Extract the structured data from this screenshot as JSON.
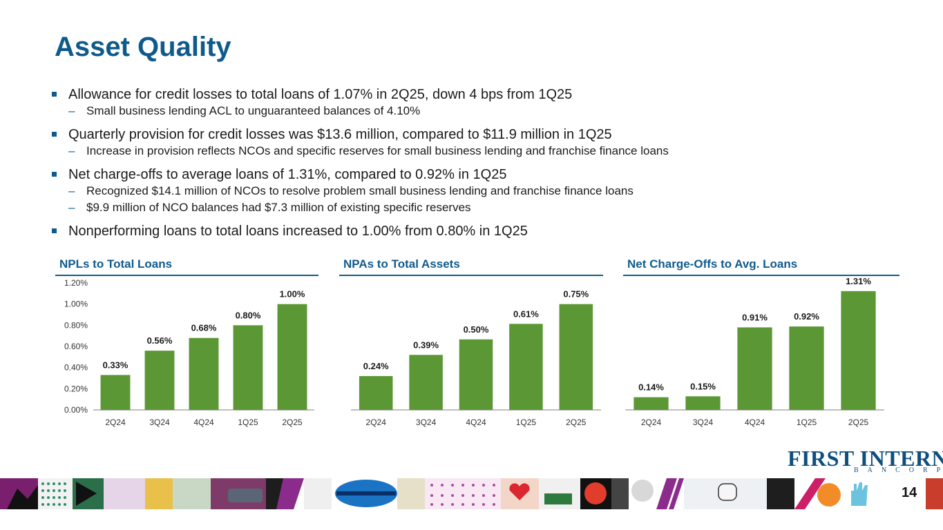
{
  "slide": {
    "title": "Asset Quality",
    "page_number": "14",
    "logo_main": "FIRST INTERNET",
    "logo_sub": "BANCORP"
  },
  "bullets": [
    {
      "text": "Allowance for credit losses to total loans of 1.07% in 2Q25, down 4 bps from 1Q25",
      "subs": [
        "Small business lending ACL to unguaranteed balances of 4.10%"
      ]
    },
    {
      "text": "Quarterly provision for credit losses was $13.6 million, compared to $11.9 million in 1Q25",
      "subs": [
        "Increase in provision reflects NCOs and specific reserves for small business lending and franchise finance loans"
      ]
    },
    {
      "text": "Net charge-offs to average loans of 1.31%, compared to 0.92% in 1Q25",
      "subs": [
        "Recognized $14.1 million of NCOs to resolve problem small business lending and franchise finance loans",
        "$9.9 million of NCO balances had $7.3 million of existing specific reserves"
      ]
    },
    {
      "text": "Nonperforming loans to total loans increased to 1.00% from 0.80% in 1Q25",
      "subs": []
    }
  ],
  "colors": {
    "title": "#0f5a8c",
    "bar": "#5b9734",
    "axis": "#7f7f7f"
  },
  "chart_data": [
    {
      "type": "bar",
      "title": "NPLs to Total Loans",
      "categories": [
        "2Q24",
        "3Q24",
        "4Q24",
        "1Q25",
        "2Q25"
      ],
      "values": [
        0.33,
        0.56,
        0.68,
        0.8,
        1.0
      ],
      "labels": [
        "0.33%",
        "0.56%",
        "0.68%",
        "0.80%",
        "1.00%"
      ],
      "ylim": [
        0,
        1.2
      ],
      "yticks": [
        "0.00%",
        "0.20%",
        "0.40%",
        "0.60%",
        "0.80%",
        "1.00%",
        "1.20%"
      ],
      "show_y_axis": true
    },
    {
      "type": "bar",
      "title": "NPAs to Total Assets",
      "categories": [
        "2Q24",
        "3Q24",
        "4Q24",
        "1Q25",
        "2Q25"
      ],
      "values": [
        0.24,
        0.39,
        0.5,
        0.61,
        0.75
      ],
      "labels": [
        "0.24%",
        "0.39%",
        "0.50%",
        "0.61%",
        "0.75%"
      ],
      "ylim": [
        0,
        0.9
      ],
      "show_y_axis": false
    },
    {
      "type": "bar",
      "title": "Net Charge-Offs to Avg. Loans",
      "categories": [
        "2Q24",
        "3Q24",
        "4Q24",
        "1Q25",
        "2Q25"
      ],
      "values": [
        0.14,
        0.15,
        0.91,
        0.92,
        1.31
      ],
      "labels": [
        "0.14%",
        "0.15%",
        "0.91%",
        "0.92%",
        "1.31%"
      ],
      "ylim": [
        0,
        1.4
      ],
      "show_y_axis": false
    }
  ]
}
